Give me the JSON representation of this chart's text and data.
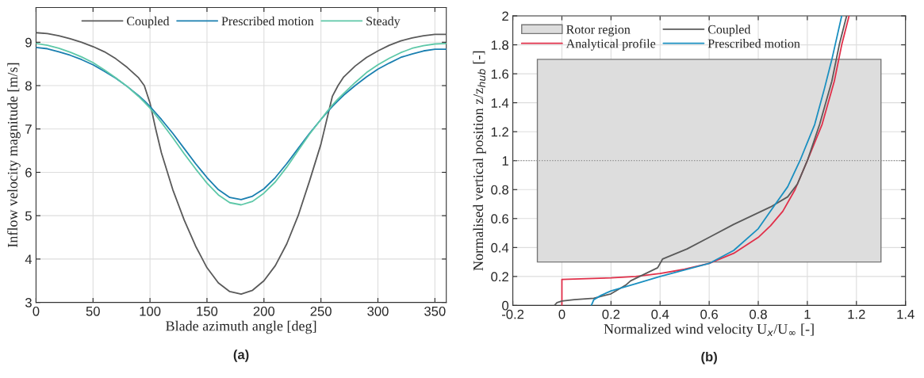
{
  "chart_data": [
    {
      "type": "line",
      "xlabel": "Blade azimuth angle [deg]",
      "ylabel": "Inflow velocity magnitude [m/s]",
      "annotations": [
        "(a)"
      ],
      "x": [
        0,
        10,
        20,
        30,
        40,
        50,
        60,
        70,
        80,
        90,
        95,
        100,
        105,
        110,
        120,
        130,
        140,
        150,
        160,
        170,
        180,
        190,
        200,
        210,
        220,
        230,
        240,
        250,
        255,
        260,
        265,
        270,
        280,
        290,
        300,
        310,
        320,
        330,
        340,
        350,
        360
      ],
      "series": [
        {
          "name": "Coupled",
          "color": "#5a5a5a",
          "values": [
            9.22,
            9.2,
            9.15,
            9.08,
            9.0,
            8.9,
            8.78,
            8.62,
            8.42,
            8.18,
            8.0,
            7.6,
            7.0,
            6.45,
            5.6,
            4.9,
            4.3,
            3.8,
            3.45,
            3.25,
            3.19,
            3.28,
            3.5,
            3.85,
            4.35,
            5.0,
            5.8,
            6.65,
            7.2,
            7.75,
            8.0,
            8.2,
            8.45,
            8.65,
            8.8,
            8.93,
            9.03,
            9.1,
            9.15,
            9.18,
            9.18
          ]
        },
        {
          "name": "Prescribed motion",
          "color": "#1a7fb0",
          "values": [
            8.88,
            8.85,
            8.78,
            8.7,
            8.6,
            8.48,
            8.33,
            8.17,
            7.98,
            7.77,
            7.65,
            7.52,
            7.37,
            7.22,
            6.9,
            6.55,
            6.2,
            5.88,
            5.6,
            5.42,
            5.37,
            5.45,
            5.62,
            5.88,
            6.2,
            6.55,
            6.9,
            7.22,
            7.37,
            7.52,
            7.65,
            7.78,
            8.0,
            8.2,
            8.38,
            8.52,
            8.65,
            8.73,
            8.8,
            8.84,
            8.84
          ]
        },
        {
          "name": "Steady",
          "color": "#5ec8a8",
          "values": [
            8.97,
            8.93,
            8.86,
            8.77,
            8.66,
            8.53,
            8.36,
            8.18,
            7.98,
            7.75,
            7.62,
            7.48,
            7.32,
            7.15,
            6.8,
            6.43,
            6.08,
            5.75,
            5.48,
            5.3,
            5.25,
            5.33,
            5.52,
            5.78,
            6.12,
            6.5,
            6.88,
            7.22,
            7.39,
            7.55,
            7.69,
            7.82,
            8.07,
            8.3,
            8.48,
            8.63,
            8.76,
            8.86,
            8.92,
            8.96,
            8.97
          ]
        }
      ],
      "xlim": [
        0,
        360
      ],
      "xticks": [
        0,
        50,
        100,
        150,
        200,
        250,
        300,
        350
      ],
      "ylim": [
        3,
        9.8
      ],
      "yticks": [
        3,
        4,
        5,
        6,
        7,
        8,
        9
      ],
      "grid": true,
      "legend": "top",
      "line_style": "solid",
      "marker": "none"
    },
    {
      "type": "line",
      "xlabel": "Normalized wind velocity U$_{x}$/U$_{∞}$ [-]",
      "ylabel": "Normalised vertical position z/z$_{hub}$ [-]",
      "annotations": [
        "(b)"
      ],
      "series": [
        {
          "name": "Rotor region",
          "type": "area",
          "color": "#dddddd",
          "x": [
            -0.1,
            -0.1,
            1.3,
            1.3,
            -0.1
          ],
          "values": [
            0.3,
            1.7,
            1.7,
            0.3,
            0.3
          ]
        },
        {
          "name": "Analytical profile",
          "color": "#e0304a",
          "x": [
            0,
            0,
            0.2,
            0.3,
            0.4,
            0.5,
            0.6,
            0.7,
            0.8,
            0.85,
            0.9,
            0.95,
            1.0,
            1.06,
            1.11,
            1.14,
            1.17
          ],
          "values": [
            0,
            0.18,
            0.19,
            0.2,
            0.22,
            0.25,
            0.29,
            0.36,
            0.47,
            0.55,
            0.65,
            0.8,
            1.0,
            1.25,
            1.55,
            1.8,
            2.0
          ]
        },
        {
          "name": "Coupled",
          "color": "#5a5a5a",
          "x": [
            -0.03,
            -0.02,
            0,
            0.05,
            0.13,
            0.2,
            0.26,
            0.28,
            0.39,
            0.41,
            0.51,
            0.6,
            0.7,
            0.85,
            0.92,
            0.96,
            1.0,
            1.05,
            1.1,
            1.13,
            1.16
          ],
          "values": [
            0,
            0.02,
            0.03,
            0.04,
            0.05,
            0.08,
            0.14,
            0.17,
            0.26,
            0.32,
            0.39,
            0.47,
            0.56,
            0.68,
            0.75,
            0.84,
            1.0,
            1.25,
            1.55,
            1.8,
            2.0
          ]
        },
        {
          "name": "Prescribed motion",
          "color": "#1a8fc0",
          "x": [
            0.12,
            0.13,
            0.16,
            0.2,
            0.3,
            0.4,
            0.5,
            0.6,
            0.7,
            0.8,
            0.87,
            0.92,
            0.97,
            1.03,
            1.07,
            1.1,
            1.14
          ],
          "values": [
            0,
            0.04,
            0.07,
            0.1,
            0.15,
            0.2,
            0.245,
            0.29,
            0.38,
            0.53,
            0.7,
            0.82,
            1.0,
            1.25,
            1.5,
            1.7,
            2.0
          ]
        }
      ],
      "ref_lines": [
        {
          "axis": "y",
          "value": 1,
          "color": "#888888",
          "line_style": "dotted"
        }
      ],
      "xlim": [
        -0.2,
        1.4
      ],
      "xticks": [
        -0.2,
        0,
        0.2,
        0.4,
        0.6,
        0.8,
        1,
        1.2,
        1.4
      ],
      "ylim": [
        0,
        2
      ],
      "yticks": [
        0,
        0.2,
        0.4,
        0.6,
        0.8,
        1,
        1.2,
        1.4,
        1.6,
        1.8,
        2
      ],
      "grid": true,
      "legend": "top left",
      "line_style": "solid",
      "marker": "none"
    }
  ]
}
